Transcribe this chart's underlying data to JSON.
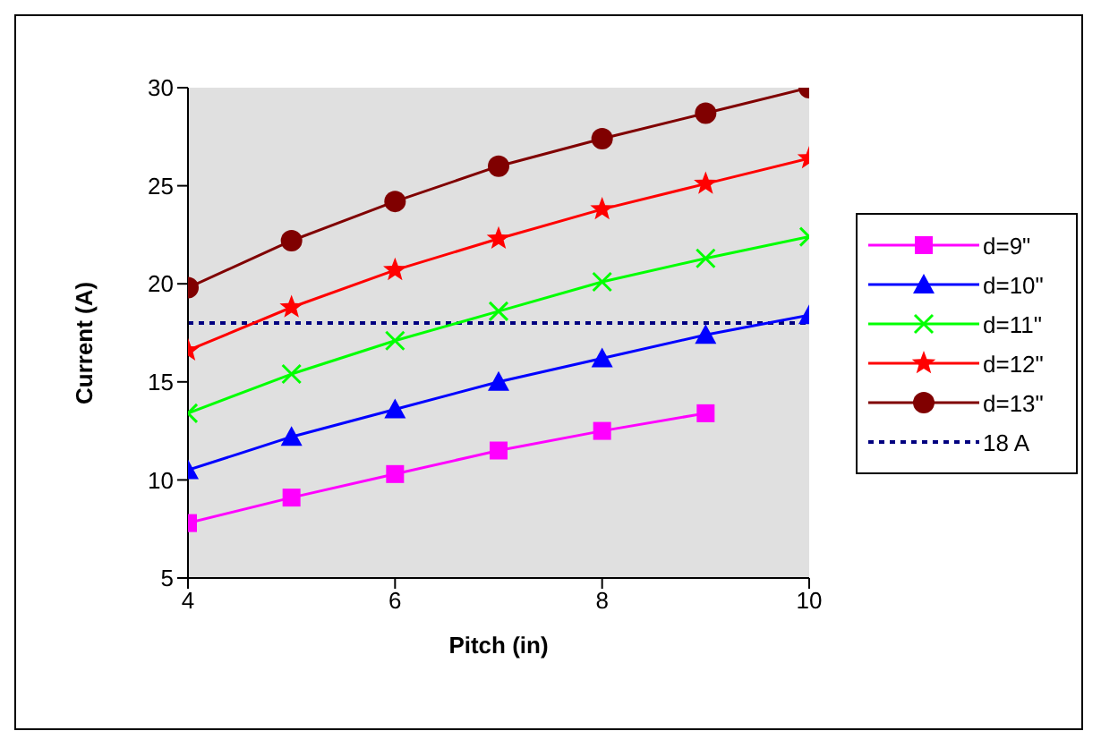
{
  "chart_data": {
    "type": "line",
    "xlabel": "Pitch (in)",
    "ylabel": "Current (A)",
    "x": [
      4,
      5,
      6,
      7,
      8,
      9,
      10
    ],
    "series": [
      {
        "name": "d=9\"",
        "color": "#ff00ff",
        "marker": "square",
        "values": [
          7.8,
          9.1,
          10.3,
          11.5,
          12.5,
          13.4,
          null
        ]
      },
      {
        "name": "d=10\"",
        "color": "#0000ff",
        "marker": "triangle",
        "values": [
          10.5,
          12.2,
          13.6,
          15.0,
          16.2,
          17.4,
          18.4
        ]
      },
      {
        "name": "d=11\"",
        "color": "#00ff00",
        "marker": "cross",
        "values": [
          13.4,
          15.4,
          17.1,
          18.6,
          20.1,
          21.3,
          22.4
        ]
      },
      {
        "name": "d=12\"",
        "color": "#ff0000",
        "marker": "star",
        "values": [
          16.6,
          18.8,
          20.7,
          22.3,
          23.8,
          25.1,
          26.4
        ]
      },
      {
        "name": "d=13\"",
        "color": "#800000",
        "marker": "circle",
        "values": [
          19.8,
          22.2,
          24.2,
          26.0,
          27.4,
          28.7,
          30.0
        ]
      }
    ],
    "ref_lines": [
      {
        "axis": "y",
        "value": 18,
        "label": "18 A",
        "color": "#000080",
        "line_style": "dotted"
      }
    ],
    "xlim": [
      4,
      10
    ],
    "xticks": [
      4,
      6,
      8,
      10
    ],
    "ylim": [
      5,
      30
    ],
    "yticks": [
      5,
      10,
      15,
      20,
      25,
      30
    ],
    "grid": false,
    "legend": "right"
  }
}
